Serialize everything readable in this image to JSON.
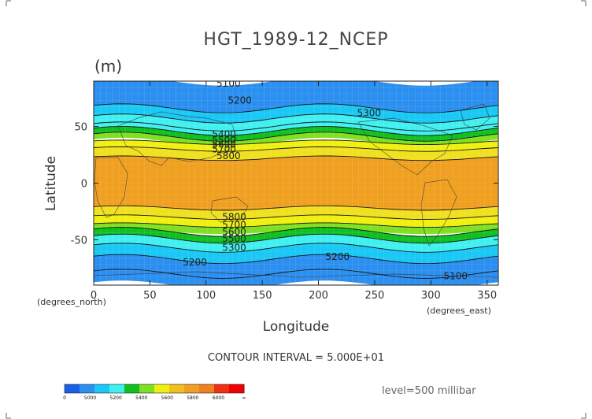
{
  "title": "HGT_1989-12_NCEP",
  "units_label": "(m)",
  "xlabel": "Longitude",
  "ylabel": "Latitude",
  "x_unit_label": "(degrees_east)",
  "y_unit_label": "(degrees_north)",
  "contour_interval_text": "CONTOUR INTERVAL = 5.000E+01",
  "level_text": "level=500 millibar",
  "chart_data": {
    "type": "heatmap",
    "title": "HGT_1989-12_NCEP",
    "xlabel": "Longitude",
    "ylabel": "Latitude",
    "xlim": [
      0,
      360
    ],
    "ylim": [
      -90,
      90
    ],
    "x_ticks": [
      0,
      50,
      100,
      150,
      200,
      250,
      300,
      350
    ],
    "y_ticks": [
      50,
      0,
      -50
    ],
    "grid": true,
    "contour_labels": [
      {
        "text": "5100",
        "lon": 120,
        "lat": 88
      },
      {
        "text": "5200",
        "lon": 130,
        "lat": 73
      },
      {
        "text": "5300",
        "lon": 245,
        "lat": 62
      },
      {
        "text": "5400",
        "lon": 116,
        "lat": 43
      },
      {
        "text": "5500",
        "lon": 116,
        "lat": 38
      },
      {
        "text": "5600",
        "lon": 116,
        "lat": 34
      },
      {
        "text": "5700",
        "lon": 116,
        "lat": 30
      },
      {
        "text": "5800",
        "lon": 120,
        "lat": 24
      },
      {
        "text": "5800",
        "lon": 125,
        "lat": -30
      },
      {
        "text": "5700",
        "lon": 125,
        "lat": -37
      },
      {
        "text": "5600",
        "lon": 125,
        "lat": -43
      },
      {
        "text": "5500",
        "lon": 125,
        "lat": -49
      },
      {
        "text": "5300",
        "lon": 125,
        "lat": -57
      },
      {
        "text": "5200",
        "lon": 217,
        "lat": -65
      },
      {
        "text": "5200",
        "lon": 90,
        "lat": -70
      },
      {
        "text": "5100",
        "lon": 322,
        "lat": -82
      }
    ],
    "colorbar": {
      "ticks": [
        "0",
        "5000",
        "5200",
        "5400",
        "5600",
        "5800",
        "6000",
        "∞"
      ],
      "colors": [
        "#1a5fe6",
        "#2b8ff0",
        "#19c8f5",
        "#40f0f0",
        "#10c020",
        "#7ee020",
        "#f0f010",
        "#f0c020",
        "#f0a020",
        "#f08020",
        "#f03010",
        "#f00000"
      ]
    }
  }
}
